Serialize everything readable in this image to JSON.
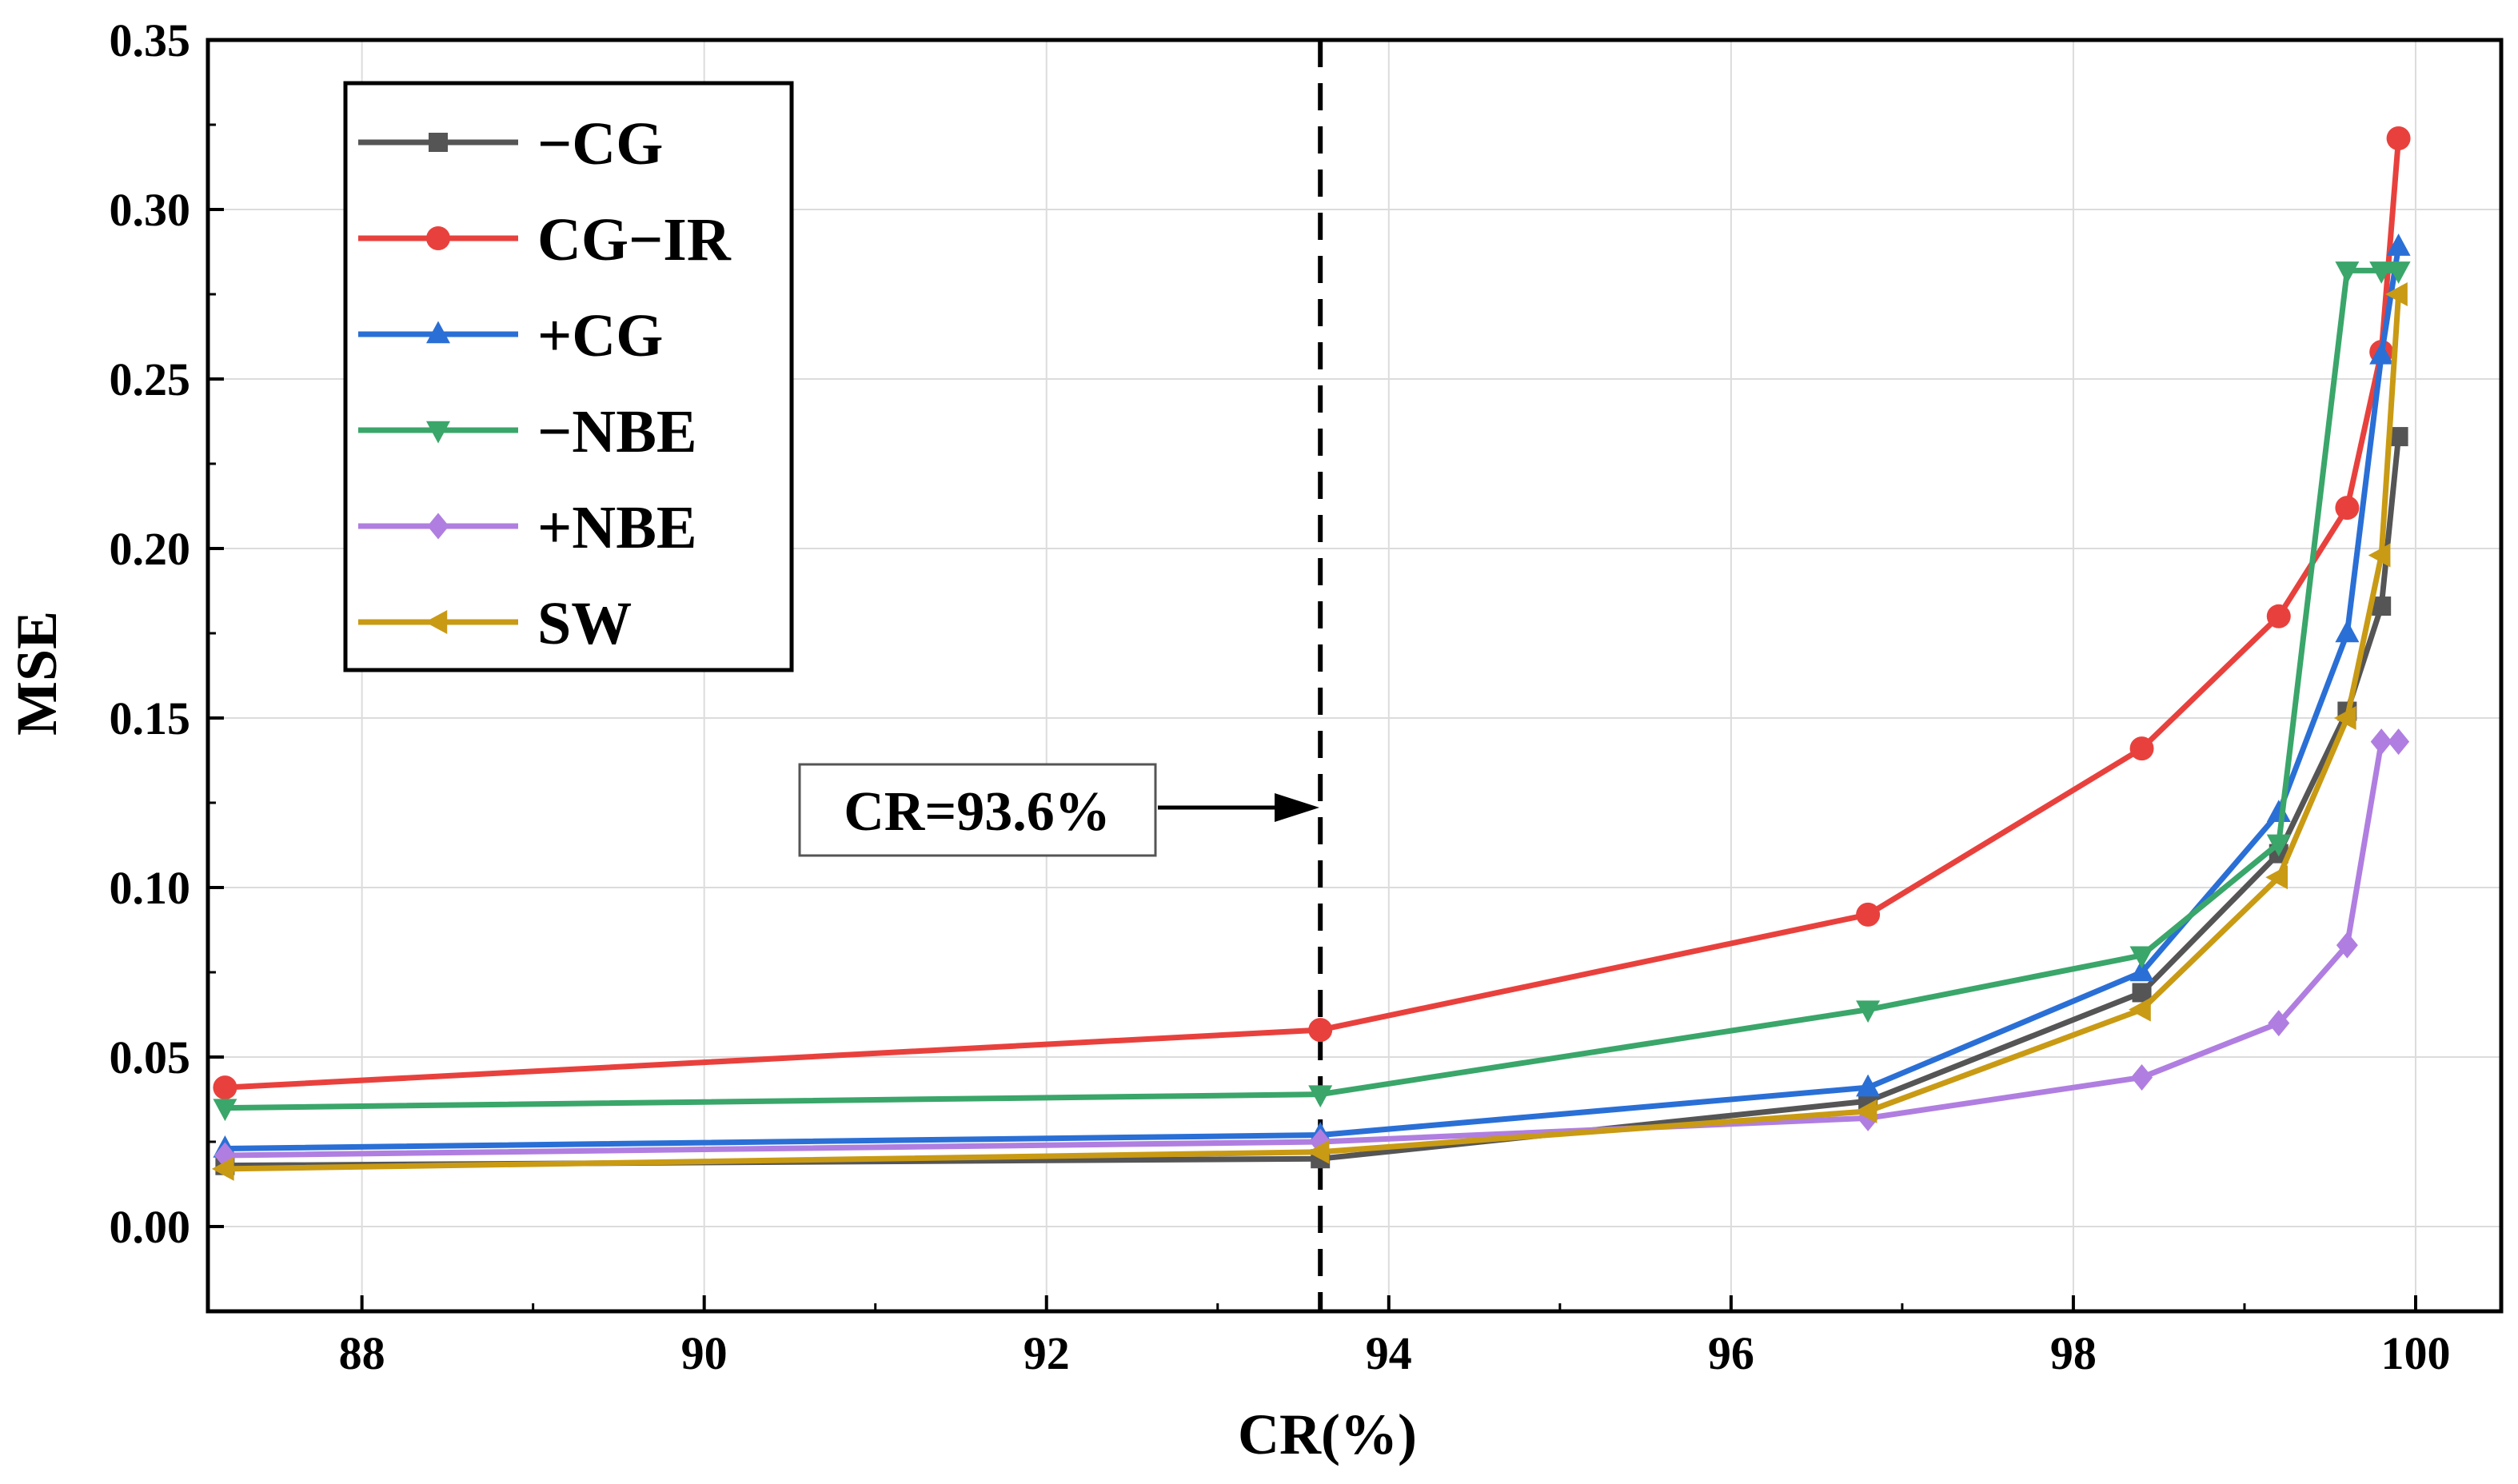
{
  "chart_data": {
    "type": "line",
    "title": "",
    "xlabel": "CR(%)",
    "ylabel": "MSE",
    "xlim": [
      87.1,
      100.5
    ],
    "ylim": [
      -0.025,
      0.35
    ],
    "xticks": [
      88,
      90,
      92,
      94,
      96,
      98,
      100
    ],
    "yticks": [
      0.0,
      0.05,
      0.1,
      0.15,
      0.2,
      0.25,
      0.3,
      0.35
    ],
    "xtick_labels": [
      "88",
      "90",
      "92",
      "94",
      "96",
      "98",
      "100"
    ],
    "ytick_labels": [
      "0.00",
      "0.05",
      "0.10",
      "0.15",
      "0.20",
      "0.25",
      "0.30",
      "0.35"
    ],
    "grid": true,
    "legend_position": "top-left",
    "reference_line": {
      "x": 93.6,
      "style": "dashed",
      "label": "CR=93.6%"
    },
    "series": [
      {
        "name": "−CG",
        "color": "#555555",
        "marker": "square",
        "x": [
          87.2,
          93.6,
          96.8,
          98.4,
          99.2,
          99.6,
          99.8,
          99.9
        ],
        "y": [
          0.018,
          0.02,
          0.037,
          0.069,
          0.11,
          0.152,
          0.183,
          0.233
        ]
      },
      {
        "name": "CG−IR",
        "color": "#e8413d",
        "marker": "circle",
        "x": [
          87.2,
          93.6,
          96.8,
          98.4,
          99.2,
          99.6,
          99.8,
          99.9
        ],
        "y": [
          0.041,
          0.058,
          0.092,
          0.141,
          0.18,
          0.212,
          0.258,
          0.321
        ]
      },
      {
        "name": "+CG",
        "color": "#2a6fd6",
        "marker": "triangle-up",
        "x": [
          87.2,
          93.6,
          96.8,
          98.4,
          99.2,
          99.6,
          99.8,
          99.9
        ],
        "y": [
          0.023,
          0.027,
          0.041,
          0.075,
          0.122,
          0.175,
          0.257,
          0.289
        ]
      },
      {
        "name": "−NBE",
        "color": "#3aa66a",
        "marker": "triangle-down",
        "x": [
          87.2,
          93.6,
          96.8,
          98.4,
          99.2,
          99.6,
          99.8,
          99.9
        ],
        "y": [
          0.035,
          0.039,
          0.064,
          0.08,
          0.113,
          0.282,
          0.282,
          0.282
        ]
      },
      {
        "name": "+NBE",
        "color": "#b07ee0",
        "marker": "diamond",
        "x": [
          87.2,
          93.6,
          96.8,
          98.4,
          99.2,
          99.6,
          99.8,
          99.9
        ],
        "y": [
          0.021,
          0.025,
          0.032,
          0.044,
          0.06,
          0.083,
          0.143,
          0.143
        ]
      },
      {
        "name": "SW",
        "color": "#c99a14",
        "marker": "triangle-left",
        "x": [
          87.2,
          93.6,
          96.8,
          98.4,
          99.2,
          99.6,
          99.8,
          99.9
        ],
        "y": [
          0.017,
          0.022,
          0.034,
          0.064,
          0.103,
          0.15,
          0.198,
          0.275
        ]
      }
    ]
  }
}
